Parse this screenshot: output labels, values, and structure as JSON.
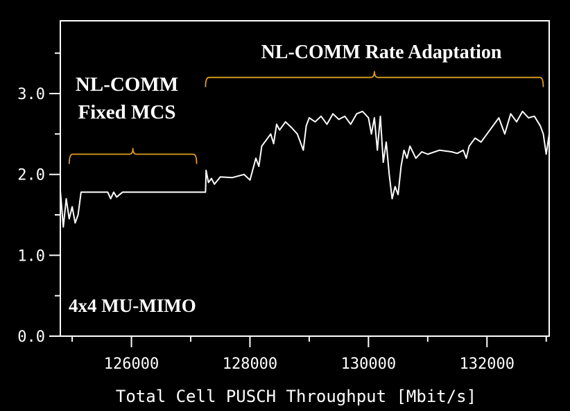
{
  "chart_data": {
    "type": "line",
    "title": "",
    "xlabel": "Total Cell PUSCH Throughput [Mbit/s]",
    "ylabel": "",
    "xlim": [
      124800,
      133050
    ],
    "ylim": [
      0.0,
      3.9
    ],
    "x_ticks": [
      126000,
      128000,
      130000,
      132000
    ],
    "x_tick_labels": [
      "126000",
      "128000",
      "130000",
      "132000"
    ],
    "y_ticks": [
      0.0,
      1.0,
      2.0,
      3.0
    ],
    "y_tick_labels": [
      "0.0",
      "1.0",
      "2.0",
      "3.0"
    ],
    "grid": false,
    "legend": "none",
    "colors": {
      "background": "#000000",
      "line": "#ffffff",
      "axes": "#ffffff",
      "bracket": "#e0a020"
    },
    "annotations": {
      "fixed_mcs_line1": "NL-COMM",
      "fixed_mcs_line2": "Fixed MCS",
      "rate_adaptation": "NL-COMM Rate Adaptation",
      "config": "4x4 MU-MIMO"
    },
    "brackets": [
      {
        "x_start": 124950,
        "x_end": 127100,
        "y": 2.25
      },
      {
        "x_start": 127250,
        "x_end": 132950,
        "y": 3.2
      }
    ],
    "series": [
      {
        "x": [
          124800,
          124850,
          124900,
          124950,
          125000,
          125050,
          125100,
          125150,
          125300,
          125500,
          125600,
          125650,
          125700,
          125750,
          125850,
          126000,
          126500,
          127000,
          127250,
          127260,
          127300,
          127350,
          127400,
          127500,
          127700,
          127900,
          128000,
          128100,
          128150,
          128200,
          128300,
          128350,
          128400,
          128450,
          128500,
          128550,
          128600,
          128700,
          128800,
          128900,
          128950,
          129000,
          129100,
          129200,
          129300,
          129400,
          129500,
          129600,
          129700,
          129800,
          129900,
          130000,
          130050,
          130100,
          130150,
          130200,
          130250,
          130300,
          130350,
          130400,
          130450,
          130500,
          130550,
          130600,
          130650,
          130700,
          130800,
          130900,
          131000,
          131200,
          131400,
          131500,
          131600,
          131650,
          131700,
          131800,
          131900,
          132000,
          132100,
          132200,
          132300,
          132400,
          132500,
          132600,
          132700,
          132800,
          132900,
          132950,
          133000,
          133050
        ],
        "y": [
          1.8,
          1.35,
          1.7,
          1.45,
          1.6,
          1.4,
          1.5,
          1.78,
          1.78,
          1.78,
          1.78,
          1.7,
          1.78,
          1.72,
          1.78,
          1.78,
          1.78,
          1.78,
          1.78,
          2.05,
          1.9,
          1.95,
          1.88,
          1.97,
          1.96,
          2.0,
          1.93,
          2.2,
          2.1,
          2.35,
          2.45,
          2.5,
          2.38,
          2.62,
          2.55,
          2.6,
          2.65,
          2.58,
          2.5,
          2.3,
          2.6,
          2.7,
          2.65,
          2.72,
          2.62,
          2.75,
          2.68,
          2.72,
          2.62,
          2.75,
          2.78,
          2.7,
          2.5,
          2.7,
          2.3,
          2.72,
          2.15,
          2.4,
          2.0,
          1.7,
          1.85,
          1.75,
          2.1,
          2.3,
          2.2,
          2.35,
          2.2,
          2.28,
          2.25,
          2.3,
          2.28,
          2.26,
          2.3,
          2.2,
          2.35,
          2.45,
          2.4,
          2.5,
          2.6,
          2.7,
          2.5,
          2.75,
          2.65,
          2.78,
          2.7,
          2.72,
          2.6,
          2.5,
          2.25,
          2.5
        ]
      }
    ]
  }
}
